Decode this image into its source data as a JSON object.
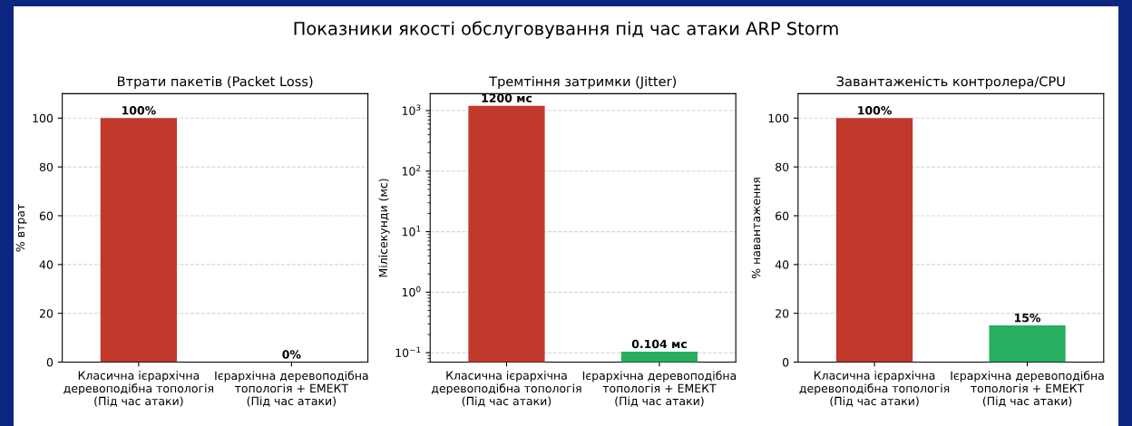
{
  "chart_data": [
    {
      "type": "bar",
      "title": "Втрати пакетів (Packet Loss)",
      "ylabel": "% втрат",
      "annotations": [
        "Показники якості обслуговування під час атаки ARP Storm"
      ],
      "categories": [
        "Класична ієрархічна\nдеревоподібна топологія\n(Під час атаки)",
        "Ієрархічна деревоподібна\nтопологія + ЕМЕКТ\n(Під час атаки)"
      ],
      "values": [
        100,
        0
      ],
      "colors": [
        "#c0392b",
        "#27ae60"
      ],
      "value_labels": [
        "100%",
        "0%"
      ],
      "ylim": [
        0,
        110
      ],
      "yticks": [
        0,
        20,
        40,
        60,
        80,
        100
      ],
      "grid": "y"
    },
    {
      "type": "bar",
      "title": "Тремтіння затримки (Jitter)",
      "ylabel": "Мілісекунди (мс)",
      "categories": [
        "Класична ієрархічна\nдеревоподібна топологія\n(Під час атаки)",
        "Ієрархічна деревоподібна\nтопологія + ЕМЕКТ\n(Під час атаки)"
      ],
      "values": [
        1200,
        0.104
      ],
      "colors": [
        "#c0392b",
        "#27ae60"
      ],
      "value_labels": [
        "1200 мс",
        "0.104 мс"
      ],
      "log": true,
      "ylim": [
        0.07,
        1900
      ],
      "yticks": [
        {
          "value": 0.1,
          "label": "10$^{−1}$"
        },
        {
          "value": 1,
          "label": "10$^{0}$"
        },
        {
          "value": 10,
          "label": "10$^{1}$"
        },
        {
          "value": 100,
          "label": "10$^{2}$"
        },
        {
          "value": 1000,
          "label": "10$^{3}$"
        }
      ],
      "grid": "y"
    },
    {
      "type": "bar",
      "title": "Завантаженість контролера/CPU",
      "ylabel": "% навантаження",
      "categories": [
        "Класична ієрархічна\nдеревоподібна топологія\n(Під час атаки)",
        "Ієрархічна деревоподібна\nтопологія + ЕМЕКТ\n(Під час атаки)"
      ],
      "values": [
        100,
        15
      ],
      "colors": [
        "#c0392b",
        "#27ae60"
      ],
      "value_labels": [
        "100%",
        "15%"
      ],
      "ylim": [
        0,
        110
      ],
      "yticks": [
        0,
        20,
        40,
        60,
        80,
        100
      ],
      "grid": "y"
    }
  ]
}
